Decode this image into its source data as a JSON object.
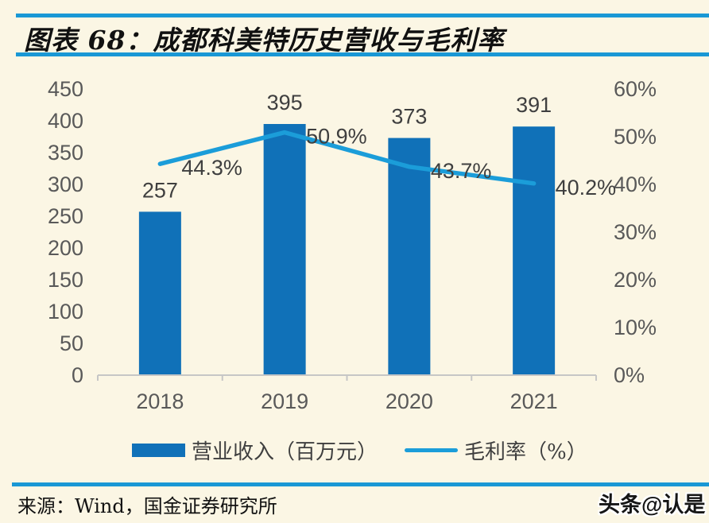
{
  "page": {
    "background": "#FBF6E4",
    "rule_color": "#1998D5"
  },
  "header": {
    "title": "图表 68：成都科美特历史营收与毛利率"
  },
  "chart_data": {
    "type": "bar",
    "subtype": "bar+line dual-axis",
    "title": "成都科美特历史营收与毛利率",
    "categories": [
      "2018",
      "2019",
      "2020",
      "2021"
    ],
    "series": [
      {
        "name": "营业收入（百万元）",
        "type": "bar",
        "axis": "left",
        "values": [
          257,
          395,
          373,
          391
        ],
        "color": "#1071B8"
      },
      {
        "name": "毛利率（%）",
        "type": "line",
        "axis": "right",
        "values": [
          44.3,
          50.9,
          43.7,
          40.2
        ],
        "unit": "%",
        "color": "#1B9DD9"
      }
    ],
    "left_axis": {
      "min": 0,
      "max": 450,
      "step": 50,
      "ticks": [
        "0",
        "50",
        "100",
        "150",
        "200",
        "250",
        "300",
        "350",
        "400",
        "450"
      ]
    },
    "right_axis": {
      "min": 0,
      "max": 60,
      "step": 10,
      "ticks": [
        "0%",
        "10%",
        "20%",
        "30%",
        "40%",
        "50%",
        "60%"
      ]
    },
    "axis_line_color": "#C6C6C6",
    "label_color": "#3F3F3F",
    "grid": false,
    "legend_position": "bottom"
  },
  "footer": {
    "source": "来源：Wind，国金证券研究所",
    "watermark": "头条@认是"
  }
}
